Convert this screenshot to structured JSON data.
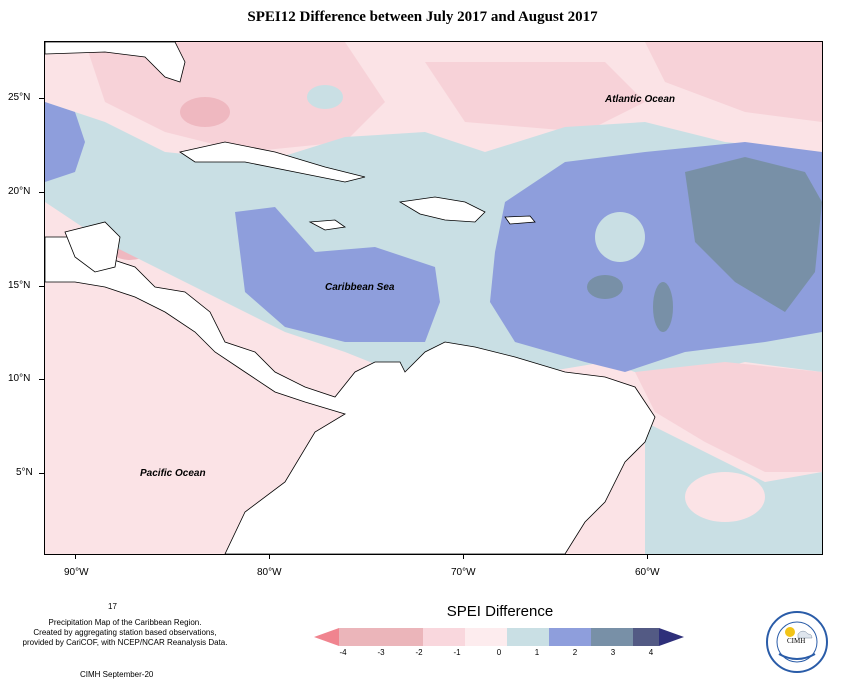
{
  "title": "SPEI12 Difference between July 2017 and August 2017",
  "ocean_labels": {
    "atlantic": "Atlantic Ocean",
    "caribbean": "Caribbean Sea",
    "pacific": "Pacific Ocean"
  },
  "axes": {
    "y_ticks": [
      "25°N",
      "20°N",
      "15°N",
      "10°N",
      "5°N"
    ],
    "x_ticks": [
      "90°W",
      "80°W",
      "70°W",
      "60°W"
    ]
  },
  "footnote": {
    "number": "17",
    "lines": [
      "Precipitation Map of the Caribbean Region.",
      "Created by aggregating station based observations,",
      "provided by CariCOF, with NCEP/NCAR Reanalysis Data."
    ],
    "credit": "CIMH September-20"
  },
  "legend": {
    "title": "SPEI Difference",
    "labels": [
      "-4",
      "-3",
      "-2",
      "-1",
      "0",
      "1",
      "2",
      "3",
      "4"
    ],
    "colors": [
      "#f0848f",
      "#ebb5ba",
      "#f9d7dd",
      "#fdecee",
      "#c9dfe4",
      "#8e9edc",
      "#7890a7",
      "#535a84",
      "#2e2f7a"
    ]
  },
  "logo": {
    "text": "CIMH"
  }
}
